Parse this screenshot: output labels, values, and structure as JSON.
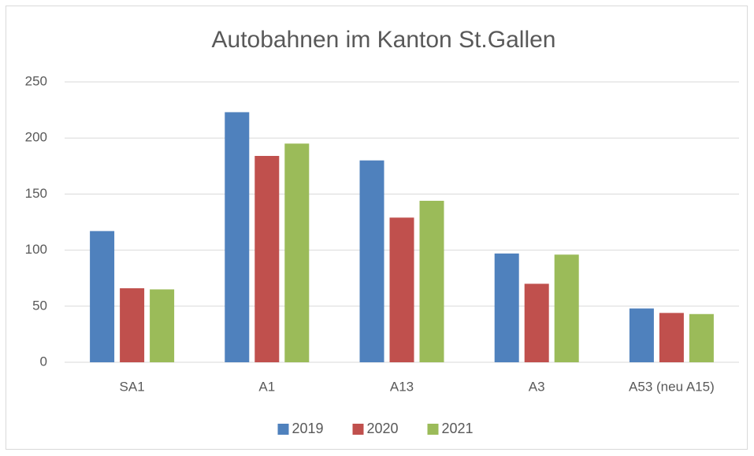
{
  "chart_data": {
    "type": "bar",
    "title": "Autobahnen im Kanton St.Gallen",
    "categories": [
      "SA1",
      "A1",
      "A13",
      "A3",
      "A53 (neu A15)"
    ],
    "series": [
      {
        "name": "2019",
        "color": "#4f81bd",
        "values": [
          117,
          223,
          180,
          97,
          48
        ]
      },
      {
        "name": "2020",
        "color": "#c0504d",
        "values": [
          66,
          184,
          129,
          70,
          44
        ]
      },
      {
        "name": "2021",
        "color": "#9bbb59",
        "values": [
          65,
          195,
          144,
          96,
          43
        ]
      }
    ],
    "ylim": [
      0,
      250
    ],
    "yticks": [
      0,
      50,
      100,
      150,
      200,
      250
    ],
    "grid": true,
    "legend": "bottom"
  }
}
